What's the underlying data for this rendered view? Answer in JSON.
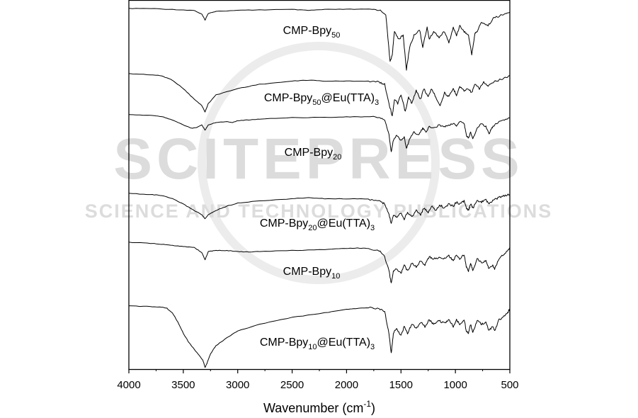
{
  "watermark": {
    "line1": "SCITEPRESS",
    "line2": "SCIENCE AND TECHNOLOGY PUBLICATIONS"
  },
  "chart_data": {
    "type": "line",
    "title": "",
    "xlabel": "Wavenumber (cm",
    "xlabel_sup": "-1",
    "xlabel_suffix": ")",
    "ylabel": "",
    "xlim": [
      4000,
      500
    ],
    "x_reversed": true,
    "y_axis": "stacked offset, no ticks",
    "xticks": [
      4000,
      3500,
      3000,
      2500,
      2000,
      1500,
      1000,
      500
    ],
    "xtick_labels": [
      "4000",
      "3500",
      "3000",
      "2500",
      "2000",
      "1500",
      "1000",
      "500"
    ],
    "grid": false,
    "series": [
      {
        "name": "CMP-Bpy50",
        "label": {
          "main": "CMP-Bpy",
          "sub": "50",
          "suffix": "",
          "suffix_sub": "",
          "suffix_end": ""
        },
        "x": [
          4000,
          3800,
          3600,
          3400,
          3330,
          3300,
          3270,
          3200,
          3000,
          2800,
          2500,
          2350,
          2200,
          2000,
          1800,
          1700,
          1640,
          1600,
          1580,
          1560,
          1520,
          1480,
          1450,
          1420,
          1380,
          1330,
          1300,
          1260,
          1240,
          1200,
          1150,
          1100,
          1060,
          1020,
          990,
          960,
          920,
          880,
          850,
          820,
          800,
          760,
          700,
          650,
          600,
          550,
          500
        ],
        "y": [
          100,
          100,
          99.5,
          99,
          97,
          94,
          97.5,
          98.5,
          99,
          99.3,
          99.5,
          99,
          99.5,
          99.6,
          99.6,
          99.3,
          97,
          72,
          76,
          88,
          84,
          86,
          68,
          80,
          86,
          89,
          80,
          90,
          84,
          88,
          85,
          88,
          82,
          90,
          86,
          91,
          88,
          86,
          76,
          87,
          88,
          93,
          91,
          95,
          96,
          97,
          98
        ]
      },
      {
        "name": "CMP-Bpy50@Eu(TTA)3",
        "label": {
          "main": "CMP-Bpy",
          "sub": "50",
          "suffix": "@Eu(TTA)",
          "suffix_sub": "3",
          "suffix_end": ""
        },
        "x": [
          4000,
          3800,
          3700,
          3600,
          3500,
          3400,
          3330,
          3300,
          3270,
          3200,
          3000,
          2800,
          2500,
          2350,
          2200,
          2000,
          1800,
          1700,
          1650,
          1610,
          1580,
          1560,
          1530,
          1500,
          1460,
          1430,
          1400,
          1360,
          1320,
          1290,
          1250,
          1220,
          1180,
          1140,
          1100,
          1060,
          1020,
          990,
          960,
          920,
          880,
          850,
          820,
          780,
          740,
          700,
          650,
          600,
          550,
          500
        ],
        "y": [
          100,
          99.5,
          99,
          97,
          93,
          88,
          85,
          82,
          86,
          90,
          93,
          95,
          96.5,
          97,
          96.5,
          96.5,
          96.5,
          96,
          95,
          86,
          80,
          88,
          86,
          90,
          82,
          89,
          86,
          92,
          88,
          93,
          89,
          93,
          89,
          85,
          91,
          89,
          93,
          90,
          94,
          92,
          93,
          91,
          95,
          93,
          96,
          94,
          96,
          97,
          98,
          99
        ]
      },
      {
        "name": "CMP-Bpy20",
        "label": {
          "main": "CMP-Bpy",
          "sub": "20",
          "suffix": "",
          "suffix_sub": "",
          "suffix_end": ""
        },
        "x": [
          4000,
          3800,
          3700,
          3600,
          3500,
          3420,
          3380,
          3330,
          3300,
          3270,
          3200,
          3100,
          3050,
          3000,
          2900,
          2800,
          2500,
          2200,
          2000,
          1800,
          1700,
          1650,
          1610,
          1590,
          1570,
          1540,
          1500,
          1470,
          1450,
          1420,
          1380,
          1340,
          1300,
          1270,
          1240,
          1200,
          1150,
          1100,
          1060,
          1020,
          990,
          960,
          920,
          900,
          880,
          860,
          840,
          800,
          760,
          720,
          690,
          670,
          640,
          600,
          550,
          500
        ],
        "y": [
          100,
          99.7,
          99,
          97,
          94,
          92,
          92.5,
          94,
          91,
          94,
          95.5,
          96,
          95.5,
          96.5,
          97,
          97.5,
          98.3,
          98.5,
          98.8,
          98.8,
          98.5,
          97,
          88,
          78,
          85,
          88,
          85,
          87,
          80,
          86,
          90,
          88,
          92,
          90,
          93,
          92,
          94,
          93,
          94,
          95,
          93.5,
          96,
          95,
          88,
          86,
          90,
          86,
          92,
          95,
          93,
          89,
          92,
          94,
          96,
          97,
          98
        ]
      },
      {
        "name": "CMP-Bpy20@Eu(TTA)3",
        "label": {
          "main": "CMP-Bpy",
          "sub": "20",
          "suffix": "@Eu(TTA)",
          "suffix_sub": "3",
          "suffix_end": ""
        },
        "x": [
          4000,
          3800,
          3700,
          3600,
          3500,
          3400,
          3330,
          3300,
          3270,
          3200,
          3100,
          3000,
          2800,
          2500,
          2350,
          2200,
          2000,
          1800,
          1700,
          1650,
          1610,
          1590,
          1570,
          1540,
          1500,
          1470,
          1440,
          1400,
          1360,
          1320,
          1290,
          1250,
          1220,
          1180,
          1140,
          1100,
          1060,
          1020,
          990,
          960,
          920,
          900,
          880,
          860,
          840,
          800,
          760,
          720,
          690,
          650,
          600,
          550,
          500
        ],
        "y": [
          100,
          99.5,
          99,
          97.5,
          95,
          92,
          90,
          88,
          90,
          92,
          94,
          95.5,
          96.5,
          97.5,
          98,
          97.5,
          97.5,
          97.3,
          96.5,
          95,
          90,
          86,
          90,
          89,
          91,
          88,
          91,
          89,
          92,
          90,
          93,
          91,
          94,
          92,
          94.5,
          93,
          95,
          94,
          96,
          95,
          96.5,
          93,
          92,
          95,
          93,
          96.5,
          96,
          97,
          95,
          97,
          98,
          99,
          99.5
        ]
      },
      {
        "name": "CMP-Bpy10",
        "label": {
          "main": "CMP-Bpy",
          "sub": "10",
          "suffix": "",
          "suffix_sub": "",
          "suffix_end": ""
        },
        "x": [
          4000,
          3800,
          3700,
          3600,
          3500,
          3400,
          3330,
          3300,
          3270,
          3200,
          3100,
          3000,
          2900,
          2800,
          2500,
          2200,
          2000,
          1900,
          1800,
          1700,
          1650,
          1610,
          1590,
          1570,
          1540,
          1500,
          1470,
          1440,
          1400,
          1360,
          1320,
          1280,
          1240,
          1200,
          1150,
          1100,
          1060,
          1020,
          990,
          960,
          920,
          900,
          880,
          860,
          840,
          800,
          760,
          720,
          690,
          660,
          640,
          600,
          560,
          520,
          500
        ],
        "y": [
          100,
          99.5,
          99,
          98.5,
          98,
          97.5,
          95,
          91.5,
          95.5,
          96,
          96,
          95.5,
          95.3,
          95.5,
          96,
          96.5,
          97,
          97.2,
          97,
          96,
          93,
          86,
          80,
          86,
          87,
          85,
          89,
          86,
          90,
          88,
          91,
          89,
          93,
          92,
          92.5,
          92,
          93.5,
          91,
          94,
          92,
          94,
          88,
          86,
          90,
          86,
          92,
          90,
          91,
          87,
          89,
          87,
          92,
          94,
          96,
          97
        ]
      },
      {
        "name": "CMP-Bpy10@Eu(TTA)3",
        "label": {
          "main": "CMP-Bpy",
          "sub": "10",
          "suffix": "@Eu(TTA)",
          "suffix_sub": "3",
          "suffix_end": ""
        },
        "x": [
          4000,
          3800,
          3700,
          3650,
          3600,
          3550,
          3500,
          3450,
          3400,
          3350,
          3320,
          3300,
          3280,
          3250,
          3200,
          3100,
          3000,
          2800,
          2500,
          2200,
          2000,
          1900,
          1800,
          1700,
          1650,
          1610,
          1590,
          1570,
          1540,
          1500,
          1470,
          1440,
          1400,
          1360,
          1320,
          1280,
          1240,
          1200,
          1150,
          1100,
          1060,
          1020,
          990,
          960,
          920,
          900,
          880,
          860,
          840,
          800,
          760,
          720,
          690,
          660,
          640,
          600,
          560,
          520,
          500
        ],
        "y": [
          100,
          99.8,
          99.6,
          99,
          97,
          93,
          88,
          84,
          81,
          78,
          76,
          73,
          75,
          79,
          82.5,
          86,
          89,
          92,
          95,
          97,
          98.5,
          99,
          99.2,
          98.8,
          97.5,
          88,
          79,
          88,
          90,
          87,
          91,
          88,
          92,
          90,
          93,
          91,
          94,
          92,
          93.5,
          92.5,
          94,
          91,
          94,
          92,
          94,
          89,
          88,
          92,
          88,
          94,
          92,
          93,
          89,
          91,
          89,
          94,
          95,
          97,
          99
        ]
      }
    ]
  }
}
